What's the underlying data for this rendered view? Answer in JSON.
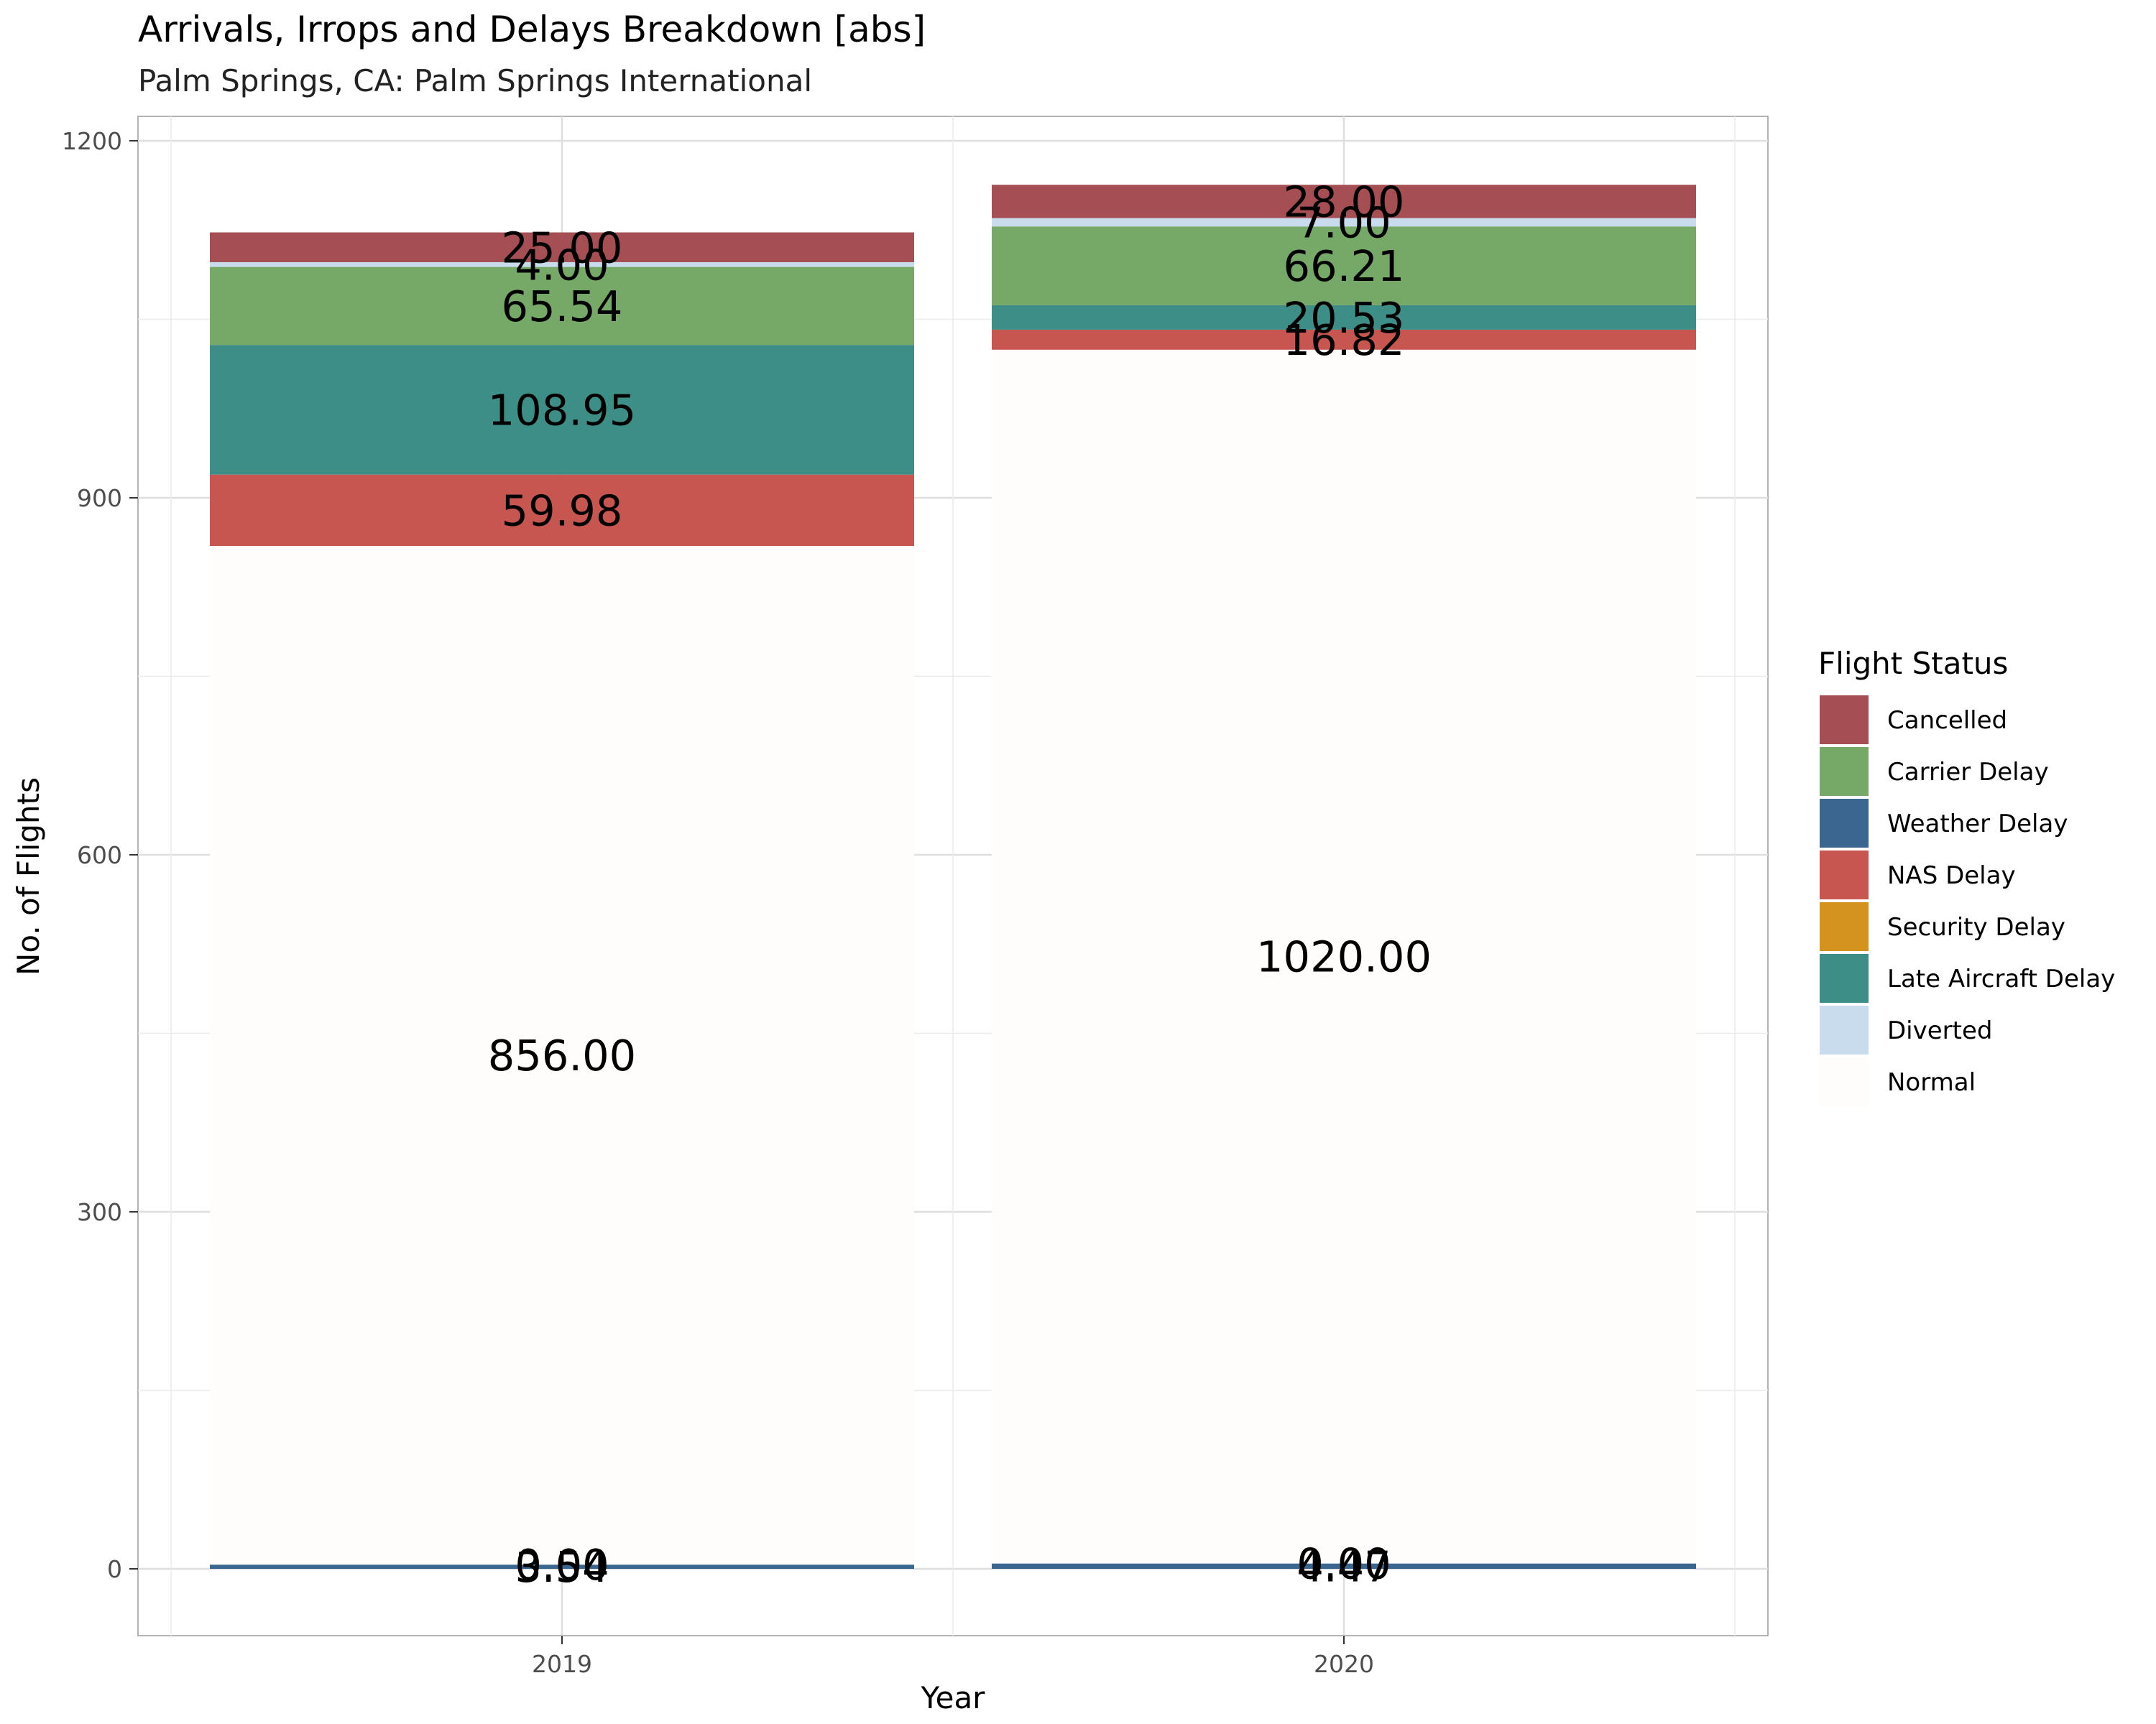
{
  "chart_data": {
    "type": "bar",
    "stacked": true,
    "title": "Arrivals, Irrops and Delays Breakdown [abs]",
    "subtitle": "Palm Springs, CA: Palm Springs International",
    "xlabel": "Year",
    "ylabel": "No. of Flights",
    "categories": [
      "2019",
      "2020"
    ],
    "ylim": [
      -60,
      1200
    ],
    "yticks": [
      0,
      300,
      600,
      900,
      1200
    ],
    "grid": true,
    "legend": {
      "title": "Flight Status",
      "position": "right",
      "entries": [
        "Cancelled",
        "Carrier Delay",
        "Weather Delay",
        "NAS Delay",
        "Security Delay",
        "Late Aircraft Delay",
        "Diverted",
        "Normal"
      ]
    },
    "stack_order_bottom_to_top": [
      "Weather Delay",
      "Security Delay",
      "Normal",
      "NAS Delay",
      "Late Aircraft Delay",
      "Carrier Delay",
      "Diverted",
      "Cancelled"
    ],
    "series": [
      {
        "name": "Cancelled",
        "color": "#a54f55",
        "values": [
          25.0,
          28.0
        ],
        "labels": [
          "25.00",
          "28.00"
        ]
      },
      {
        "name": "Carrier Delay",
        "color": "#76a968",
        "values": [
          65.54,
          66.21
        ],
        "labels": [
          "65.54",
          "66.21"
        ]
      },
      {
        "name": "Weather Delay",
        "color": "#3b6690",
        "values": [
          3.54,
          4.47
        ],
        "labels": [
          "3.54",
          "4.47"
        ]
      },
      {
        "name": "NAS Delay",
        "color": "#c6564f",
        "values": [
          59.98,
          16.82
        ],
        "labels": [
          "59.98",
          "16.82"
        ]
      },
      {
        "name": "Security Delay",
        "color": "#d4921f",
        "values": [
          0.0,
          0.0
        ],
        "labels": [
          "0.00",
          "0.00"
        ]
      },
      {
        "name": "Late Aircraft Delay",
        "color": "#3c8e87",
        "values": [
          108.95,
          20.53
        ],
        "labels": [
          "108.95",
          "20.53"
        ]
      },
      {
        "name": "Diverted",
        "color": "#c9dced",
        "values": [
          4.0,
          7.0
        ],
        "labels": [
          "4.00",
          "7.00"
        ]
      },
      {
        "name": "Normal",
        "color": "#fffdfb",
        "values": [
          856.0,
          1020.0
        ],
        "labels": [
          "856.00",
          "1020.00"
        ]
      }
    ]
  }
}
